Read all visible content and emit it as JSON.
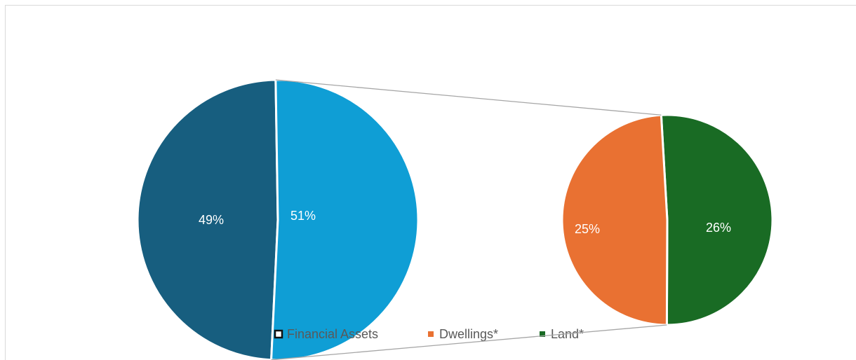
{
  "chart_data": {
    "type": "pie_of_pie",
    "categories": [
      "Financial Assets",
      "Dwellings*",
      "Land*"
    ],
    "values": [
      49,
      25,
      26
    ],
    "value_labels": [
      "49%",
      "25%",
      "26%"
    ],
    "colors": [
      "#175e7f",
      "#e97132",
      "#196b24"
    ],
    "secondary_total": 51,
    "secondary_total_label": "51%",
    "secondary_total_color": "#0f9ed5",
    "legend": "bottom"
  }
}
